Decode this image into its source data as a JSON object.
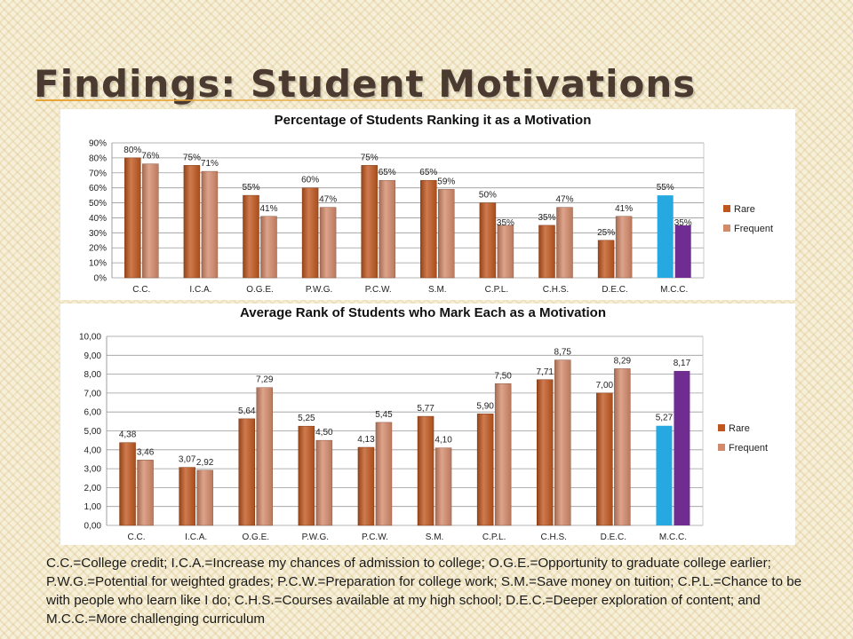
{
  "slide": {
    "title": "Findings: Student Motivations",
    "footnote": "C.C.=College credit; I.C.A.=Increase my chances of admission to college; O.G.E.=Opportunity to graduate college earlier; P.W.G.=Potential for weighted grades; P.C.W.=Preparation for college work; S.M.=Save money on tuition; C.P.L.=Chance to be with people who learn like I do; C.H.S.=Courses available at my high school; D.E.C.=Deeper exploration of content; and M.C.C.=More challenging curriculum"
  },
  "colors": {
    "rare": "#c0561d",
    "frequent": "#d4896a",
    "highlight_rare": "#26a9e0",
    "highlight_frequent": "#6f2c91",
    "title_rule": "#e7a335"
  },
  "chart_data": [
    {
      "type": "bar",
      "title": "Percentage of Students Ranking it as a Motivation",
      "categories": [
        "C.C.",
        "I.C.A.",
        "O.G.E.",
        "P.W.G.",
        "P.C.W.",
        "S.M.",
        "C.P.L.",
        "C.H.S.",
        "D.E.C.",
        "M.C.C."
      ],
      "series": [
        {
          "name": "Rare",
          "values": [
            80,
            75,
            55,
            60,
            75,
            65,
            50,
            35,
            25,
            55
          ],
          "labels": [
            "80%",
            "75%",
            "55%",
            "60%",
            "75%",
            "65%",
            "50%",
            "35%",
            "25%",
            "55%"
          ]
        },
        {
          "name": "Frequent",
          "values": [
            76,
            71,
            41,
            47,
            65,
            59,
            35,
            47,
            41,
            35
          ],
          "labels": [
            "76%",
            "71%",
            "41%",
            "47%",
            "65%",
            "59%",
            "35%",
            "47%",
            "41%",
            "35%"
          ]
        }
      ],
      "yticks": [
        "0%",
        "10%",
        "20%",
        "30%",
        "40%",
        "50%",
        "60%",
        "70%",
        "80%",
        "90%"
      ],
      "ylim": [
        0,
        90
      ],
      "highlight_category": "M.C.C.",
      "grid": true,
      "legend": "right"
    },
    {
      "type": "bar",
      "title": "Average Rank of Students who Mark Each as a Motivation",
      "categories": [
        "C.C.",
        "I.C.A.",
        "O.G.E.",
        "P.W.G.",
        "P.C.W.",
        "S.M.",
        "C.P.L.",
        "C.H.S.",
        "D.E.C.",
        "M.C.C."
      ],
      "series": [
        {
          "name": "Rare",
          "values": [
            4.38,
            3.07,
            5.64,
            5.25,
            4.13,
            5.77,
            5.9,
            7.71,
            7.0,
            5.27
          ],
          "labels": [
            "4,38",
            "3,07",
            "5,64",
            "5,25",
            "4,13",
            "5,77",
            "5,90",
            "7,71",
            "7,00",
            "5,27"
          ]
        },
        {
          "name": "Frequent",
          "values": [
            3.46,
            2.92,
            7.29,
            4.5,
            5.45,
            4.1,
            7.5,
            8.75,
            8.29,
            8.17
          ],
          "labels": [
            "3,46",
            "2,92",
            "7,29",
            "4,50",
            "5,45",
            "4,10",
            "7,50",
            "8,75",
            "8,29",
            "8,17"
          ]
        }
      ],
      "yticks": [
        "0,00",
        "1,00",
        "2,00",
        "3,00",
        "4,00",
        "5,00",
        "6,00",
        "7,00",
        "8,00",
        "9,00",
        "10,00"
      ],
      "ylim": [
        0,
        10
      ],
      "highlight_category": "M.C.C.",
      "grid": true,
      "legend": "right"
    }
  ]
}
